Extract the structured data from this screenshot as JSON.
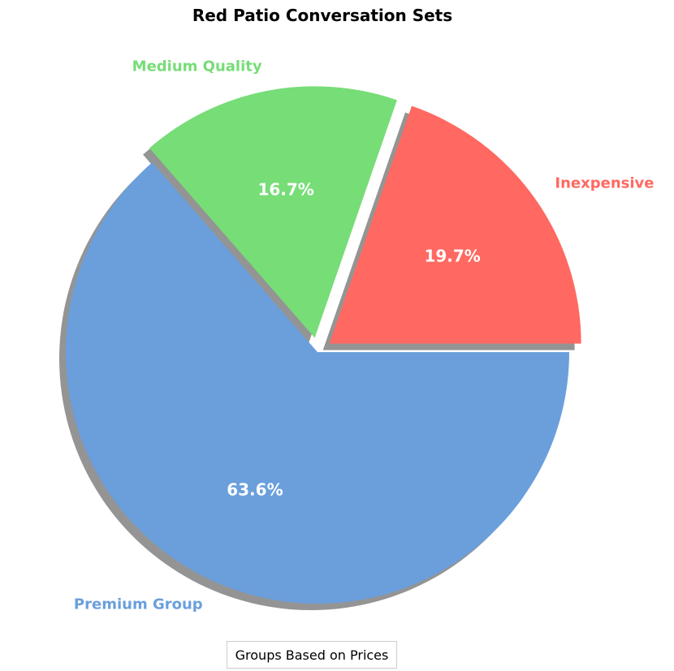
{
  "chart_data": {
    "type": "pie",
    "title": "Red Patio Conversation Sets",
    "categories": [
      "Inexpensive",
      "Medium Quality",
      "Premium Group"
    ],
    "values": [
      19.7,
      16.7,
      63.6
    ],
    "percent_labels": [
      "19.7%",
      "16.7%",
      "63.6%"
    ],
    "colors": [
      "#ff6961",
      "#77dd77",
      "#6a9fdc"
    ],
    "exploded": [
      true,
      true,
      false
    ],
    "shadow": true,
    "start_angle_deg": 0,
    "direction": "counterclockwise",
    "legend_title": "Groups Based on Prices",
    "legend_placement": "bottom-center"
  }
}
